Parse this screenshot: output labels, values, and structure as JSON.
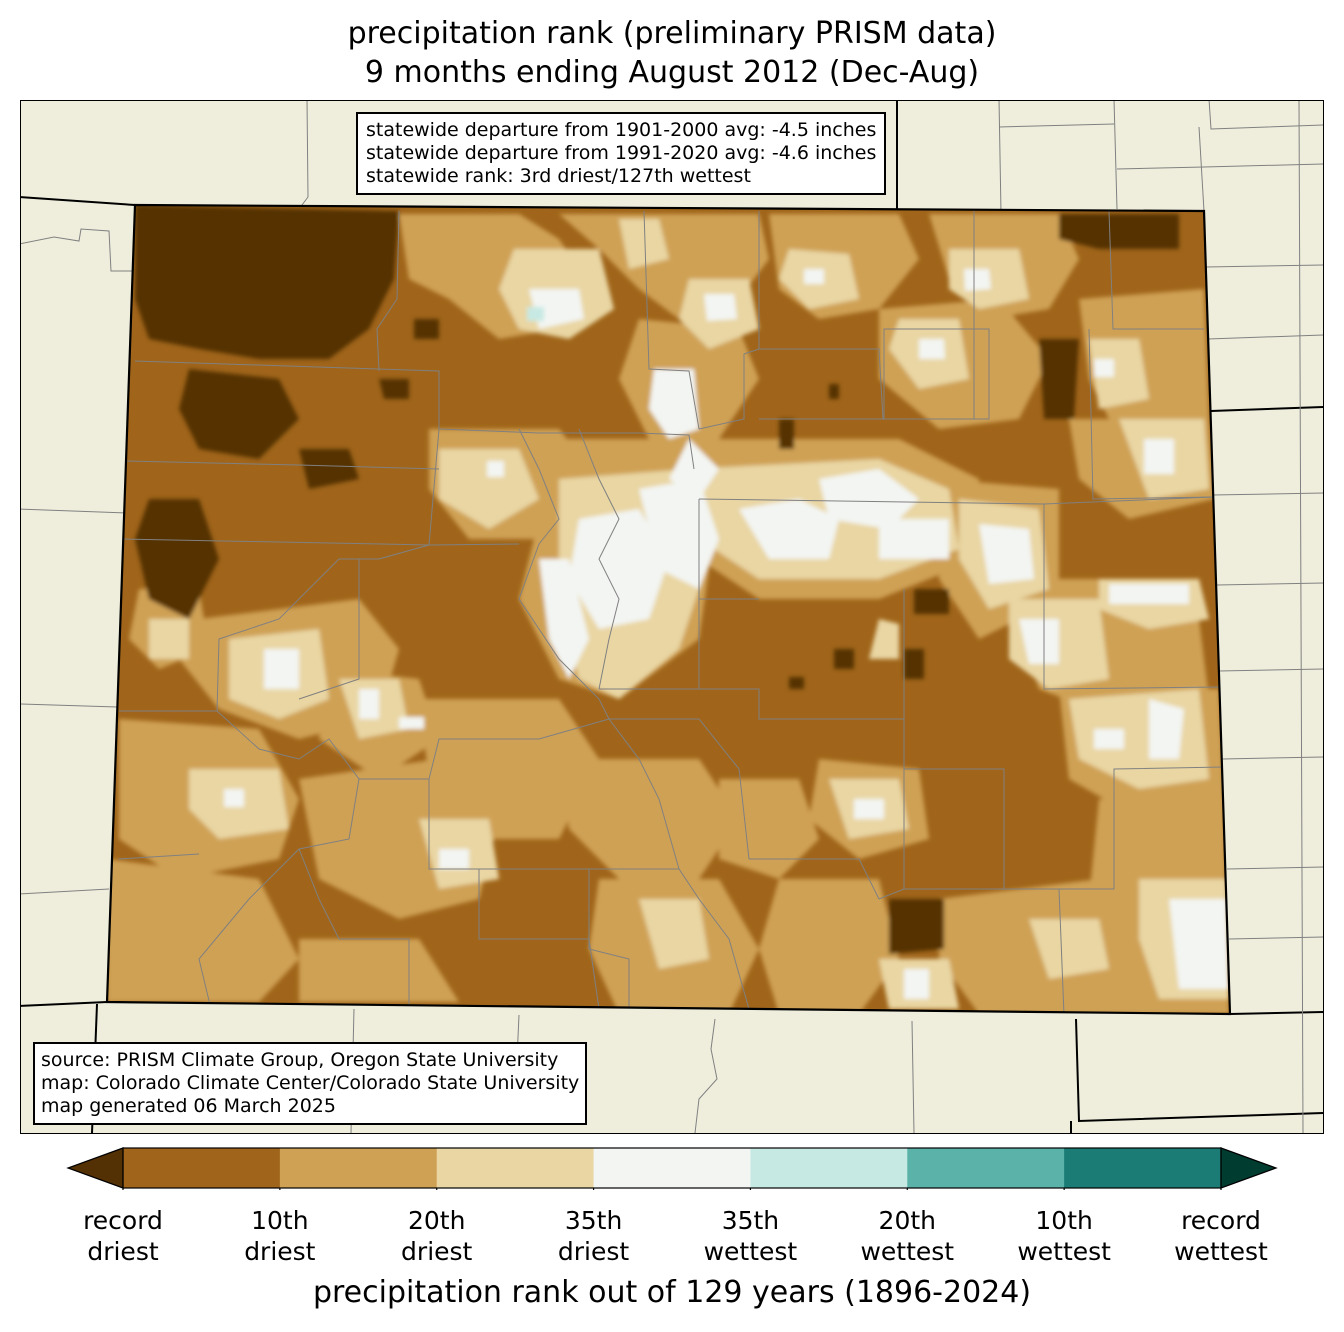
{
  "title": {
    "line1": "precipitation rank (preliminary PRISM data)",
    "line2": "9 months ending August 2012 (Dec-Aug)"
  },
  "stats_box": {
    "line1": "statewide departure from 1901-2000 avg: -4.5 inches",
    "line2": "statewide departure from 1991-2020 avg: -4.6 inches",
    "line3": "statewide rank: 3rd driest/127th wettest"
  },
  "source_box": {
    "line1": "source: PRISM Climate Group, Oregon State University",
    "line2": "map: Colorado Climate Center/Colorado State University",
    "line3": "map generated 06 March 2025"
  },
  "colors": {
    "record_driest": "#543005",
    "rank_10_driest": "#a0651a",
    "rank_20_driest": "#cfa155",
    "rank_35_driest": "#e9d6a3",
    "near_normal": "#f3f5f3",
    "rank_35_wettest": "#c7e9e3",
    "rank_20_wettest": "#5ab2a8",
    "rank_10_wettest": "#1a7c75",
    "record_wettest": "#003c30",
    "background_land": "#efeedd",
    "county_lines": "#808080"
  },
  "colorbar": {
    "bins": [
      {
        "color": "#a0651a"
      },
      {
        "color": "#cfa155"
      },
      {
        "color": "#e9d6a3"
      },
      {
        "color": "#f3f5f3"
      },
      {
        "color": "#c7e9e3"
      },
      {
        "color": "#5ab2a8"
      },
      {
        "color": "#1a7c75"
      }
    ],
    "labels": [
      {
        "line1": "record",
        "line2": "driest"
      },
      {
        "line1": "10th",
        "line2": "driest"
      },
      {
        "line1": "20th",
        "line2": "driest"
      },
      {
        "line1": "35th",
        "line2": "driest"
      },
      {
        "line1": "35th",
        "line2": "wettest"
      },
      {
        "line1": "20th",
        "line2": "wettest"
      },
      {
        "line1": "10th",
        "line2": "wettest"
      },
      {
        "line1": "record",
        "line2": "wettest"
      }
    ],
    "title": "precipitation rank out of 129 years (1896-2024)"
  }
}
